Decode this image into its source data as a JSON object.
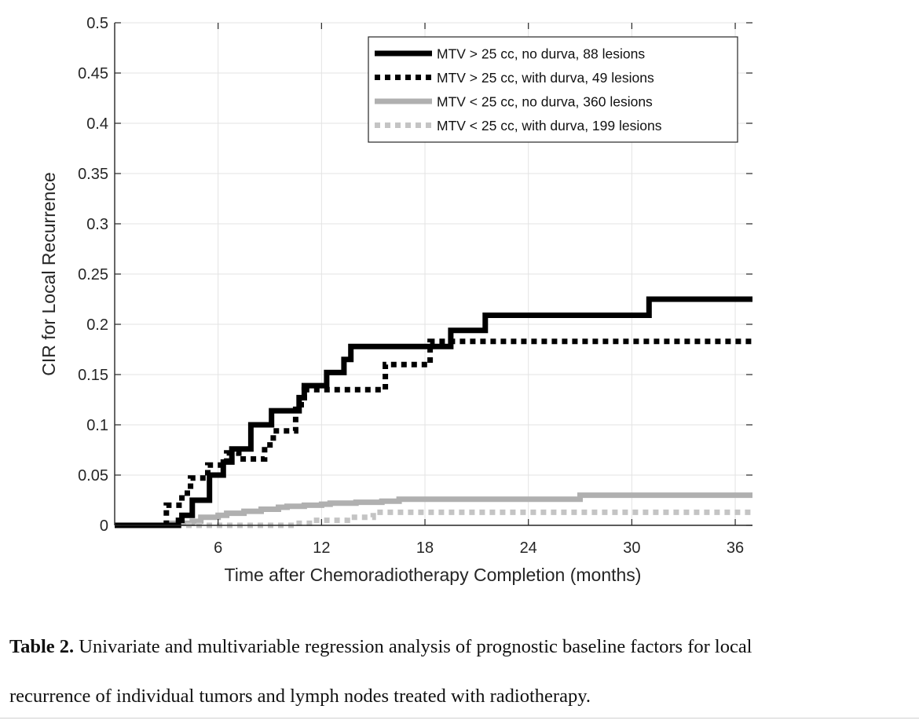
{
  "chart_data": {
    "type": "line",
    "title": "",
    "xlabel": "Time after Chemoradiotherapy Completion (months)",
    "ylabel": "CIR for Local Recurrence",
    "xlim": [
      0,
      37
    ],
    "ylim": [
      0,
      0.5
    ],
    "xticks": [
      6,
      12,
      18,
      24,
      30,
      36
    ],
    "yticks": [
      0,
      0.05,
      0.1,
      0.15,
      0.2,
      0.25,
      0.3,
      0.35,
      0.4,
      0.45,
      0.5
    ],
    "ytick_labels": [
      "0",
      "0.05",
      "0.1",
      "0.15",
      "0.2",
      "0.25",
      "0.3",
      "0.35",
      "0.4",
      "0.45",
      "0.5"
    ],
    "grid": true,
    "legend_position": "top-right",
    "series": [
      {
        "name": "MTV > 25  cc, no durva, 88 lesions",
        "color": "#000000",
        "dash": "solid",
        "x": [
          0,
          3.3,
          3.7,
          3.9,
          4.5,
          5.0,
          5.5,
          5.9,
          6.3,
          6.8,
          7.3,
          7.9,
          8.5,
          9.1,
          9.8,
          10.3,
          10.7,
          11.0,
          11.5,
          12.0,
          12.3,
          12.8,
          13.3,
          13.7,
          14.3,
          15.2,
          16.5,
          18.0,
          19.5,
          20.0,
          21.5,
          22.0,
          25.5,
          30.5,
          31.0,
          37.0
        ],
        "y": [
          0,
          0,
          0.005,
          0.01,
          0.025,
          0.025,
          0.05,
          0.05,
          0.063,
          0.076,
          0.076,
          0.1,
          0.1,
          0.114,
          0.114,
          0.114,
          0.127,
          0.139,
          0.139,
          0.139,
          0.152,
          0.152,
          0.165,
          0.178,
          0.178,
          0.178,
          0.178,
          0.178,
          0.194,
          0.194,
          0.209,
          0.209,
          0.209,
          0.209,
          0.225,
          0.225
        ]
      },
      {
        "name": "MTV > 25  cc, with durva, 49 lesions",
        "color": "#000000",
        "dash": "dotted",
        "x": [
          0,
          2.5,
          3.0,
          3.9,
          4.4,
          4.8,
          5.4,
          6.0,
          6.5,
          7.2,
          8.2,
          8.7,
          9.2,
          9.8,
          10.5,
          11.0,
          11.5,
          12.5,
          14.0,
          15.3,
          15.7,
          17.5,
          18.0,
          18.3,
          19.0,
          24.0,
          30.0,
          37.0
        ],
        "y": [
          0,
          0,
          0.02,
          0.032,
          0.047,
          0.047,
          0.06,
          0.06,
          0.072,
          0.066,
          0.066,
          0.08,
          0.094,
          0.094,
          0.12,
          0.135,
          0.135,
          0.135,
          0.135,
          0.135,
          0.16,
          0.16,
          0.16,
          0.183,
          0.183,
          0.183,
          0.183,
          0.183
        ]
      },
      {
        "name": "MTV < 25  cc, no durva, 360 lesions",
        "color": "#b0b0b0",
        "dash": "solid",
        "x": [
          0,
          2.5,
          3.0,
          4.5,
          5.0,
          6.0,
          6.5,
          7.5,
          8.5,
          9.5,
          10.0,
          11.0,
          12.0,
          12.5,
          14.0,
          15.5,
          16.5,
          19.0,
          22.0,
          24.0,
          27.0,
          30.0,
          33.0,
          37.0
        ],
        "y": [
          0,
          0,
          0.002,
          0.004,
          0.008,
          0.01,
          0.012,
          0.014,
          0.016,
          0.018,
          0.019,
          0.02,
          0.021,
          0.022,
          0.023,
          0.024,
          0.026,
          0.026,
          0.026,
          0.026,
          0.03,
          0.03,
          0.03,
          0.03
        ]
      },
      {
        "name": "MTV < 25  cc, with durva, 199 lesions",
        "color": "#c4c4c4",
        "dash": "dotted",
        "x": [
          0,
          9.0,
          10.5,
          11.5,
          13.5,
          15.0,
          18.0,
          24.0,
          30.0,
          37.0
        ],
        "y": [
          0,
          0,
          0.002,
          0.005,
          0.008,
          0.013,
          0.013,
          0.013,
          0.013,
          0.013
        ]
      }
    ]
  },
  "caption": {
    "label": "Table 2.",
    "line1": " Univariate and multivariable regression analysis of prognostic baseline factors for local",
    "line2": "recurrence of individual tumors and lymph nodes treated with radiotherapy."
  }
}
